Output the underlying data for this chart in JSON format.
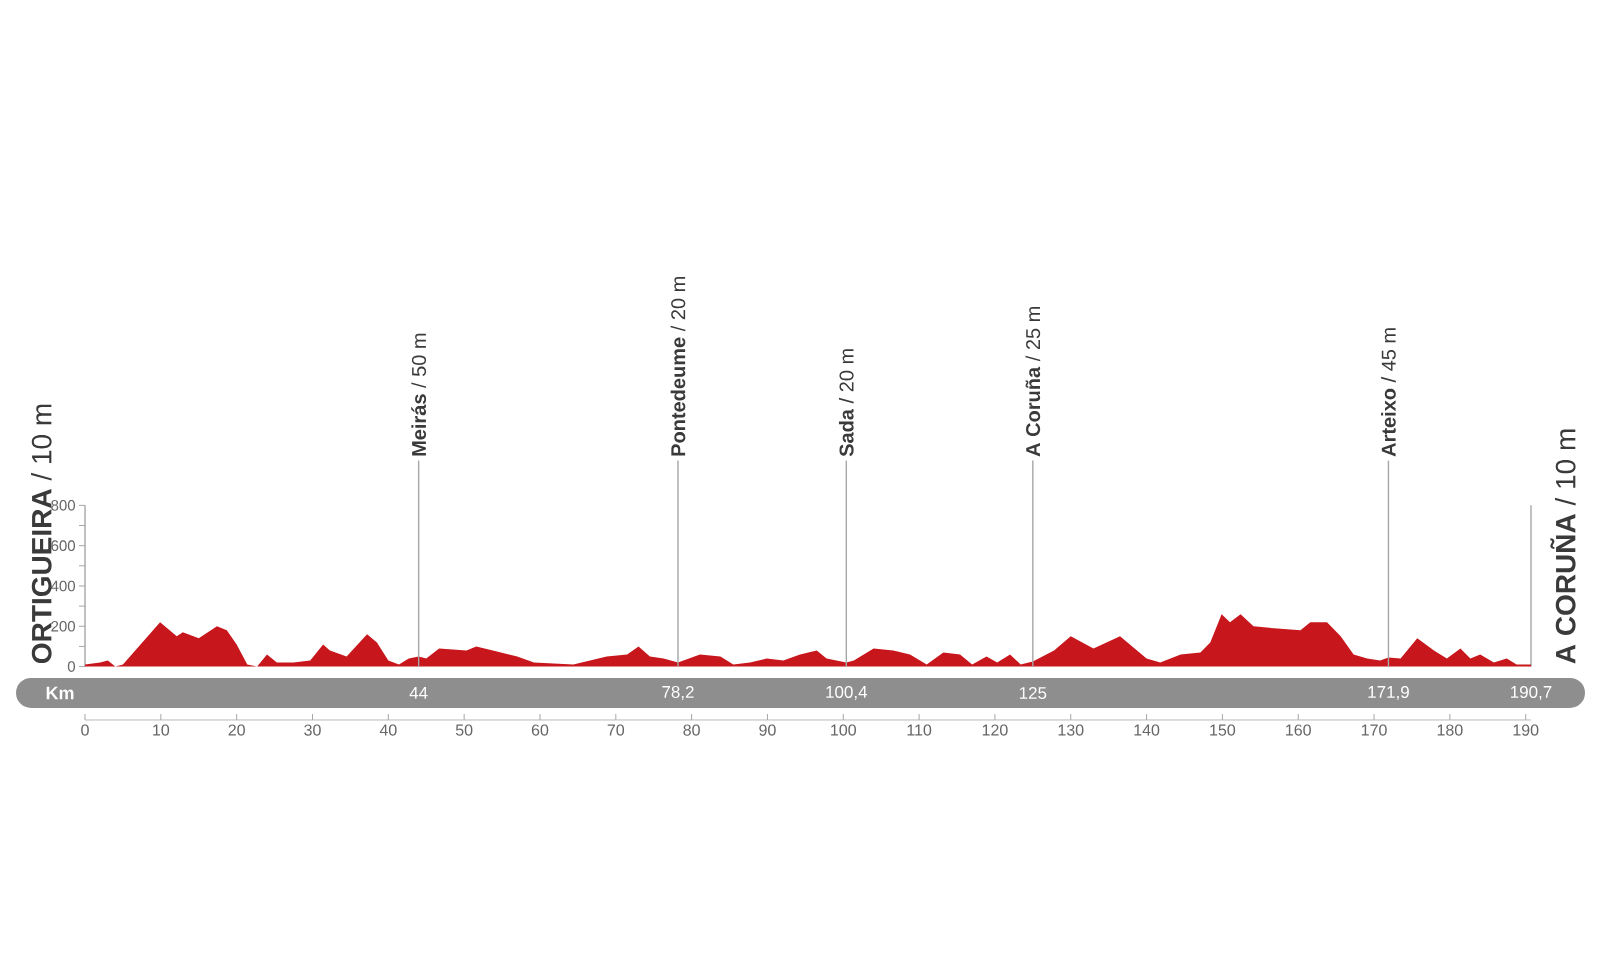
{
  "chart_data": {
    "type": "area",
    "color": "#c8161d",
    "x": [
      0,
      2,
      3,
      4,
      5,
      9.9,
      12.1,
      12.9,
      15,
      17.4,
      18.7,
      20,
      21.4,
      22.7,
      24,
      25.3,
      27.5,
      29.7,
      31.4,
      32.3,
      34.5,
      37.2,
      38.5,
      40,
      41.4,
      42.7,
      44,
      45,
      46.7,
      50.3,
      51.6,
      53.8,
      57,
      59.2,
      64.4,
      68.8,
      71.5,
      73,
      74.5,
      76.3,
      78.2,
      81.1,
      83.8,
      85.5,
      87.7,
      89.9,
      92.1,
      94.3,
      96.5,
      97.8,
      100.4,
      101.4,
      104,
      106.6,
      108.8,
      111,
      113.2,
      115.4,
      117,
      118.9,
      120.3,
      122,
      123.4,
      125,
      127.8,
      130,
      133,
      136.5,
      140,
      141.8,
      144.5,
      147.1,
      148.4,
      149.9,
      151,
      152.4,
      154.1,
      156.8,
      160.3,
      161.6,
      163.8,
      165.6,
      167.3,
      169.1,
      170.8,
      171.9,
      173.5,
      175.7,
      177.9,
      179.6,
      181.4,
      182.7,
      184,
      185.8,
      187.5,
      188.8,
      190.7
    ],
    "values": [
      10,
      20,
      30,
      0,
      10,
      220,
      150,
      170,
      140,
      200,
      180,
      110,
      10,
      0,
      60,
      20,
      20,
      30,
      110,
      80,
      50,
      160,
      120,
      30,
      10,
      40,
      50,
      40,
      90,
      80,
      100,
      80,
      50,
      20,
      10,
      50,
      60,
      100,
      50,
      40,
      20,
      60,
      50,
      10,
      20,
      40,
      30,
      60,
      80,
      40,
      20,
      30,
      90,
      80,
      60,
      10,
      70,
      60,
      10,
      50,
      20,
      60,
      10,
      25,
      80,
      150,
      90,
      150,
      40,
      20,
      60,
      70,
      120,
      260,
      220,
      260,
      200,
      190,
      180,
      220,
      220,
      150,
      60,
      40,
      30,
      45,
      40,
      140,
      80,
      40,
      90,
      40,
      60,
      20,
      40,
      10,
      10
    ],
    "xlim": [
      0,
      190.7
    ],
    "xticks": [
      0,
      10,
      20,
      30,
      40,
      50,
      60,
      70,
      80,
      90,
      100,
      110,
      120,
      130,
      140,
      150,
      160,
      170,
      180,
      190
    ],
    "ylim": [
      0,
      800
    ],
    "yticks": [
      0,
      {
        "value": 100,
        "label": null
      },
      200,
      {
        "value": 300,
        "label": null
      },
      400,
      {
        "value": 500,
        "label": null
      },
      600,
      {
        "value": 700,
        "label": null
      },
      800
    ],
    "x2label": "Km",
    "x2lim": [
      0,
      190.7
    ],
    "x2ticks": [
      44,
      {
        "value": 78.2,
        "label": "78,2"
      },
      {
        "value": 100.4,
        "label": "100,4"
      },
      125,
      {
        "value": 171.9,
        "label": "171,9"
      },
      {
        "value": 190.7,
        "label": "190,7"
      }
    ],
    "ref_lines": [
      {
        "axis": "x",
        "value": 44,
        "label": "**Meirás** / 50 m",
        "color": "#a6a6a6"
      },
      {
        "axis": "x",
        "value": 78.2,
        "label": "**Pontedeume** / 20 m",
        "color": "#a6a6a6"
      },
      {
        "axis": "x",
        "value": 100.4,
        "label": "**Sada** / 20 m",
        "color": "#a6a6a6"
      },
      {
        "axis": "x",
        "value": 125,
        "label": "**A Coruña** / 25 m",
        "color": "#a6a6a6"
      },
      {
        "axis": "x",
        "value": 171.9,
        "label": "**Arteixo** / 45 m",
        "color": "#a6a6a6"
      }
    ],
    "annotations": [
      {
        "text": "**ORTIGUEIRA** / 10 m",
        "x": 0,
        "y": 10
      },
      {
        "text": "**A CORUÑA** / 10 m",
        "x": 190.7,
        "y": 10
      }
    ]
  }
}
